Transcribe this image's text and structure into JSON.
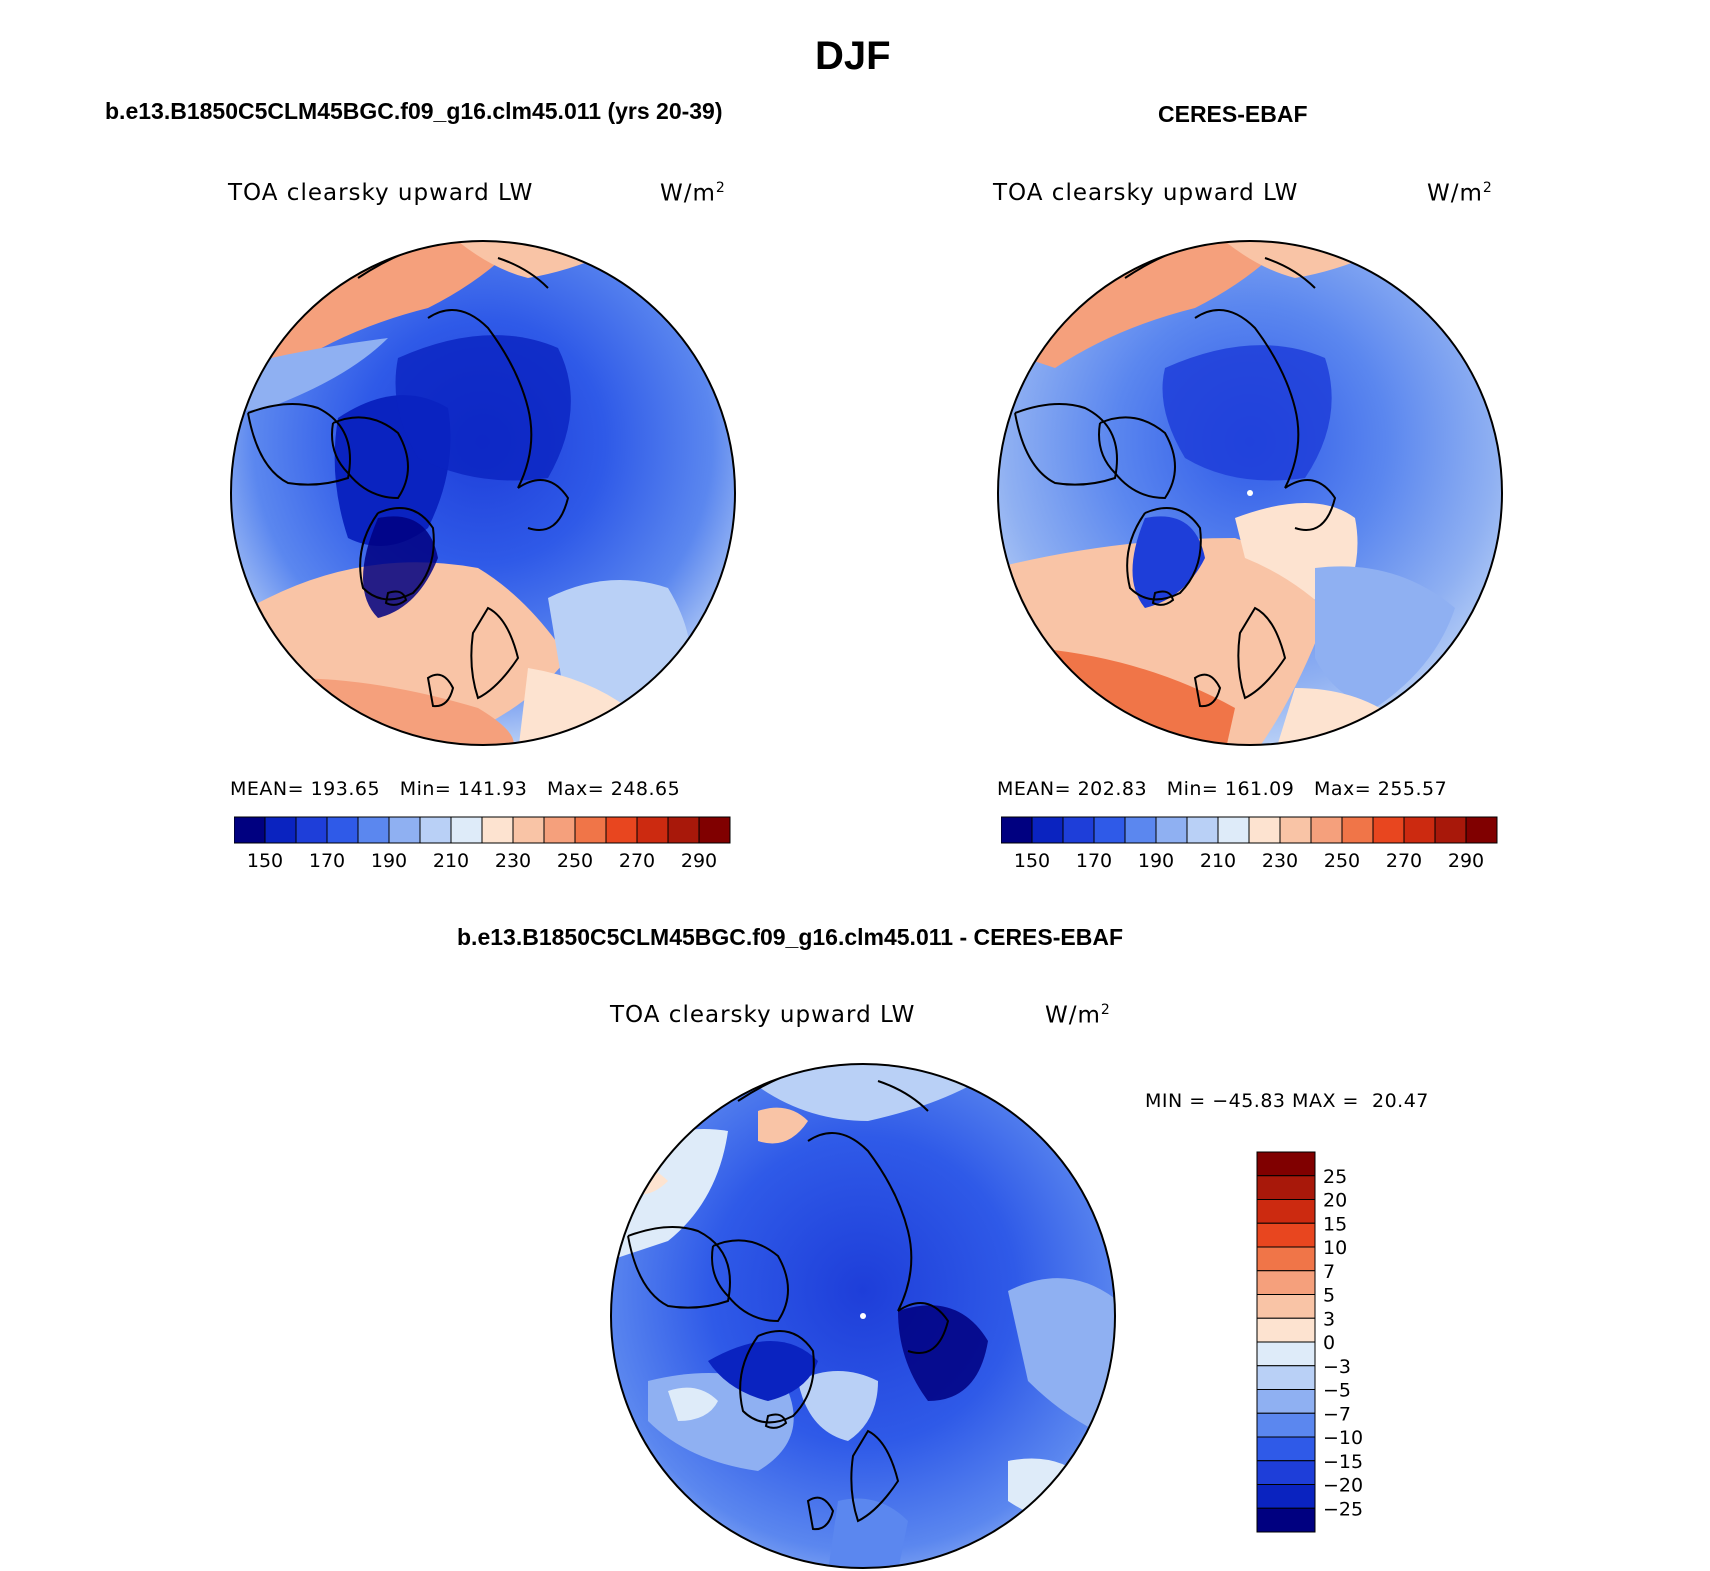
{
  "figure": {
    "title": "DJF",
    "panel_model_header": "b.e13.B1850C5CLM45BGC.f09_g16.clm45.011 (yrs 20-39)",
    "panel_obs_header": "CERES-EBAF",
    "panel_diff_header": "b.e13.B1850C5CLM45BGC.f09_g16.clm45.011 - CERES-EBAF"
  },
  "colors": {
    "abs_palette": [
      "#000080",
      "#0a23c0",
      "#1e3ed9",
      "#2f5ae8",
      "#5b87ef",
      "#8fb0f2",
      "#b9d0f6",
      "#deebf9",
      "#fde3d0",
      "#f9c4a6",
      "#f5a07c",
      "#f07548",
      "#e8461f",
      "#cc2a10",
      "#a8180a",
      "#800000"
    ],
    "diff_palette": [
      "#000080",
      "#0a23c0",
      "#1e3ed9",
      "#2f5ae8",
      "#5b87ef",
      "#8fb0f2",
      "#b9d0f6",
      "#deebf9",
      "#fde3d0",
      "#f9c4a6",
      "#f5a07c",
      "#f07548",
      "#e8461f",
      "#cc2a10",
      "#a8180a",
      "#800000"
    ]
  },
  "panels": [
    {
      "field_label": "TOA clearsky upward LW",
      "units_base": "W/m",
      "units_exp": "2",
      "stats_mean_label": "MEAN=",
      "stats_mean": "193.65",
      "stats_min_label": "Min=",
      "stats_min": "141.93",
      "stats_max_label": "Max=",
      "stats_max": "248.65"
    },
    {
      "field_label": "TOA clearsky upward LW",
      "units_base": "W/m",
      "units_exp": "2",
      "stats_mean_label": "MEAN=",
      "stats_mean": "202.83",
      "stats_min_label": "Min=",
      "stats_min": "161.09",
      "stats_max_label": "Max=",
      "stats_max": "255.57"
    },
    {
      "field_label": "TOA clearsky upward LW",
      "units_base": "W/m",
      "units_exp": "2",
      "stats_line": "MIN = −45.83 MAX =  20.47"
    }
  ],
  "chart_data": [
    {
      "type": "heatmap",
      "subtype": "polar-stereographic map",
      "title": "TOA clearsky upward LW",
      "units": "W/m2",
      "mean": 193.65,
      "min": 141.93,
      "max": 248.65,
      "colorbar_ticks": [
        "150",
        "170",
        "190",
        "210",
        "230",
        "250",
        "270",
        "290"
      ],
      "colorbar_levels": 16
    },
    {
      "type": "heatmap",
      "subtype": "polar-stereographic map",
      "title": "TOA clearsky upward LW",
      "units": "W/m2",
      "mean": 202.83,
      "min": 161.09,
      "max": 255.57,
      "colorbar_ticks": [
        "150",
        "170",
        "190",
        "210",
        "230",
        "250",
        "270",
        "290"
      ],
      "colorbar_levels": 16
    },
    {
      "type": "heatmap",
      "subtype": "polar-stereographic map",
      "title": "TOA clearsky upward LW",
      "units": "W/m2",
      "min": -45.83,
      "max": 20.47,
      "colorbar_ticks": [
        "25",
        "20",
        "15",
        "10",
        "7",
        "5",
        "3",
        "0",
        "−3",
        "−5",
        "−7",
        "−10",
        "−15",
        "−20",
        "−25"
      ],
      "colorbar_orientation": "vertical"
    }
  ]
}
